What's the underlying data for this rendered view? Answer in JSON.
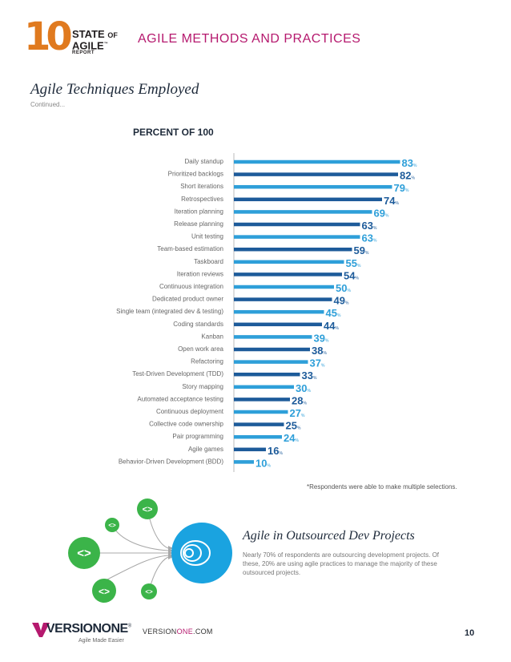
{
  "header": {
    "logo_number": "10",
    "logo_state": "STATE",
    "logo_of": "OF",
    "logo_agile": "AGILE",
    "logo_tm": "™",
    "logo_report": "REPORT",
    "title": "AGILE METHODS AND PRACTICES"
  },
  "section": {
    "title": "Agile Techniques Employed",
    "note": "Continued..."
  },
  "chart_data": {
    "type": "bar",
    "orientation": "horizontal",
    "title": "PERCENT OF 100",
    "xlim": [
      0,
      100
    ],
    "value_suffix": "%",
    "categories": [
      "Daily standup",
      "Prioritized backlogs",
      "Short iterations",
      "Retrospectives",
      "Iteration planning",
      "Release planning",
      "Unit testing",
      "Team-based estimation",
      "Taskboard",
      "Iteration reviews",
      "Continuous integration",
      "Dedicated product owner",
      "Single team (integrated dev & testing)",
      "Coding standards",
      "Kanban",
      "Open work area",
      "Refactoring",
      "Test-Driven Development (TDD)",
      "Story mapping",
      "Automated acceptance testing",
      "Continuous deployment",
      "Collective code ownership",
      "Pair programming",
      "Agile games",
      "Behavior-Driven Development (BDD)"
    ],
    "values": [
      83,
      82,
      79,
      74,
      69,
      63,
      63,
      59,
      55,
      54,
      50,
      49,
      45,
      44,
      39,
      38,
      37,
      33,
      30,
      28,
      27,
      25,
      24,
      16,
      10
    ],
    "colors": [
      "#2e9fd9",
      "#1d5b9a"
    ]
  },
  "footnote": "*Respondents were able to make multiple selections.",
  "diagram": {
    "symbol": "<>",
    "node_color": "#3bb449",
    "hub_color": "#1aa3e0"
  },
  "subsection": {
    "title": "Agile in Outsourced Dev Projects",
    "body": "Nearly 70% of respondents are outsourcing development projects. Of these, 20% are using agile practices to manage the majority of these outsourced projects."
  },
  "footer": {
    "brand": "VERSIONONE",
    "brand_reg": "®",
    "tagline": "Agile Made Easier",
    "url_prefix": "VERSION",
    "url_accent": "ONE",
    "url_suffix": ".COM",
    "page_number": "10"
  }
}
